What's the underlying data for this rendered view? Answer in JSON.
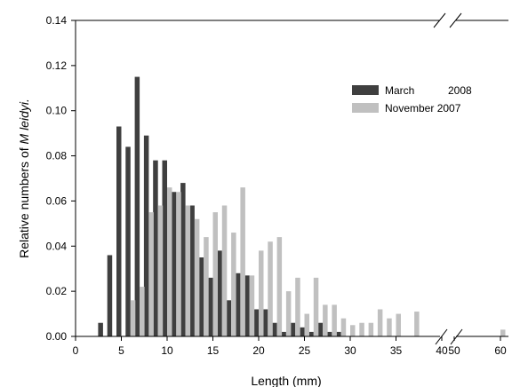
{
  "chart_data": {
    "type": "bar",
    "xlabel": "Length (mm)",
    "ylabel_prefix": "Relative numbers of ",
    "ylabel_species": "M leidyi.",
    "ylim": [
      0,
      0.14
    ],
    "yticks": [
      0.0,
      0.02,
      0.04,
      0.06,
      0.08,
      0.1,
      0.12,
      0.14
    ],
    "ytick_labels": [
      "0.00",
      "0.02",
      "0.04",
      "0.06",
      "0.08",
      "0.10",
      "0.12",
      "0.14"
    ],
    "x_segments": [
      {
        "range": [
          0,
          40
        ],
        "ticks": [
          0,
          5,
          10,
          15,
          20,
          25,
          30,
          35,
          40
        ],
        "tick_labels": [
          "0",
          "5",
          "10",
          "15",
          "20",
          "25",
          "30",
          "35",
          "40"
        ]
      },
      {
        "range": [
          50,
          60
        ],
        "ticks": [
          50,
          60
        ],
        "tick_labels": [
          "50",
          "60"
        ]
      }
    ],
    "axis_break": "between 40 and 50 on the x axis",
    "legend_position": "upper-right",
    "series": [
      {
        "name": "March",
        "name_suffix": "2008",
        "color": "#3f3f3f",
        "points": [
          {
            "x": 3,
            "y": 0.006
          },
          {
            "x": 4,
            "y": 0.036
          },
          {
            "x": 5,
            "y": 0.093
          },
          {
            "x": 6,
            "y": 0.084
          },
          {
            "x": 7,
            "y": 0.115
          },
          {
            "x": 8,
            "y": 0.089
          },
          {
            "x": 9,
            "y": 0.078
          },
          {
            "x": 10,
            "y": 0.078
          },
          {
            "x": 11,
            "y": 0.064
          },
          {
            "x": 12,
            "y": 0.068
          },
          {
            "x": 13,
            "y": 0.058
          },
          {
            "x": 14,
            "y": 0.035
          },
          {
            "x": 15,
            "y": 0.026
          },
          {
            "x": 16,
            "y": 0.038
          },
          {
            "x": 17,
            "y": 0.016
          },
          {
            "x": 18,
            "y": 0.028
          },
          {
            "x": 19,
            "y": 0.027
          },
          {
            "x": 20,
            "y": 0.012
          },
          {
            "x": 21,
            "y": 0.012
          },
          {
            "x": 22,
            "y": 0.006
          },
          {
            "x": 23,
            "y": 0.002
          },
          {
            "x": 24,
            "y": 0.006
          },
          {
            "x": 25,
            "y": 0.004
          },
          {
            "x": 26,
            "y": 0.002
          },
          {
            "x": 27,
            "y": 0.006
          },
          {
            "x": 28,
            "y": 0.002
          },
          {
            "x": 29,
            "y": 0.002
          }
        ]
      },
      {
        "name": "November 2007",
        "color": "#c0c0c0",
        "points": [
          {
            "x": 6,
            "y": 0.016
          },
          {
            "x": 7,
            "y": 0.022
          },
          {
            "x": 8,
            "y": 0.055
          },
          {
            "x": 9,
            "y": 0.058
          },
          {
            "x": 10,
            "y": 0.066
          },
          {
            "x": 11,
            "y": 0.064
          },
          {
            "x": 12,
            "y": 0.058
          },
          {
            "x": 13,
            "y": 0.052
          },
          {
            "x": 14,
            "y": 0.044
          },
          {
            "x": 15,
            "y": 0.055
          },
          {
            "x": 16,
            "y": 0.058
          },
          {
            "x": 17,
            "y": 0.046
          },
          {
            "x": 18,
            "y": 0.066
          },
          {
            "x": 19,
            "y": 0.027
          },
          {
            "x": 20,
            "y": 0.038
          },
          {
            "x": 21,
            "y": 0.042
          },
          {
            "x": 22,
            "y": 0.044
          },
          {
            "x": 23,
            "y": 0.02
          },
          {
            "x": 24,
            "y": 0.026
          },
          {
            "x": 25,
            "y": 0.01
          },
          {
            "x": 26,
            "y": 0.026
          },
          {
            "x": 27,
            "y": 0.014
          },
          {
            "x": 28,
            "y": 0.014
          },
          {
            "x": 29,
            "y": 0.008
          },
          {
            "x": 30,
            "y": 0.005
          },
          {
            "x": 31,
            "y": 0.006
          },
          {
            "x": 32,
            "y": 0.006
          },
          {
            "x": 33,
            "y": 0.012
          },
          {
            "x": 34,
            "y": 0.008
          },
          {
            "x": 35,
            "y": 0.01
          },
          {
            "x": 37,
            "y": 0.011
          },
          {
            "x": 60,
            "y": 0.003
          }
        ]
      }
    ]
  }
}
